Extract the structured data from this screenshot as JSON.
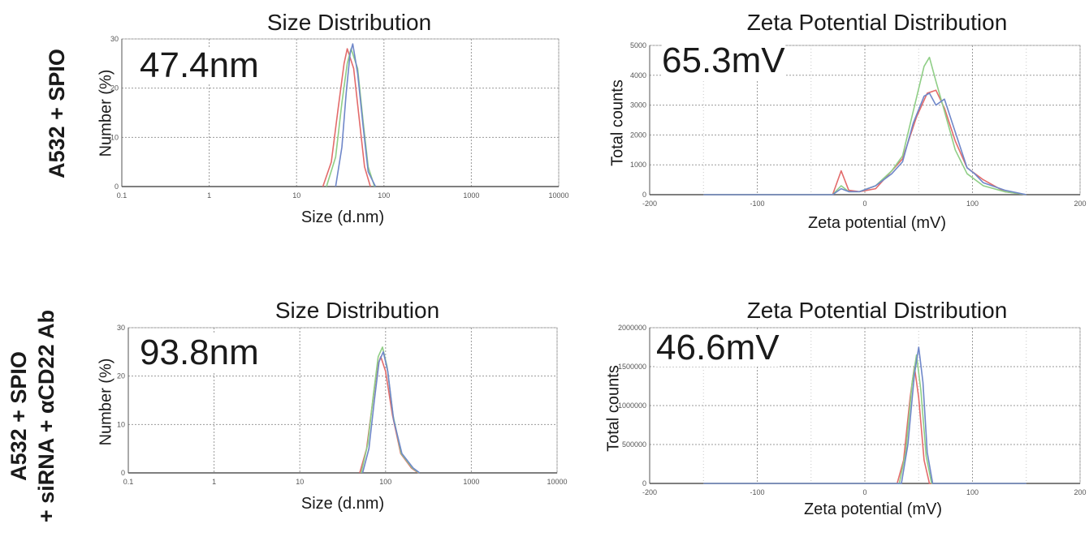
{
  "row_labels": [
    {
      "line1": "A532 + SPIO",
      "line2": ""
    },
    {
      "line1": "A532 + SPIO",
      "line2": "+ siRNA + αCD22 Ab"
    }
  ],
  "panels": [
    {
      "title": "Size Distribution",
      "value_label": "47.4nm",
      "xlabel": "Size (d.nm)",
      "ylabel": "Number (%)"
    },
    {
      "title": "Zeta Potential Distribution",
      "value_label": "65.3mV",
      "xlabel": "Zeta potential (mV)",
      "ylabel": "Total counts"
    },
    {
      "title": "Size Distribution",
      "value_label": "93.8nm",
      "xlabel": "Size (d.nm)",
      "ylabel": "Number (%)"
    },
    {
      "title": "Zeta Potential Distribution",
      "value_label": "46.6mV",
      "xlabel": "Zeta potential (mV)",
      "ylabel": "Total counts"
    }
  ],
  "colors": {
    "red": "#e36b6b",
    "green": "#8fce86",
    "blue": "#6f87c9",
    "grid": "#9a9a9a",
    "axis": "#555555"
  },
  "chart_data": [
    {
      "type": "line",
      "title": "Size Distribution",
      "xlabel": "Size (d.nm)",
      "ylabel": "Number (%)",
      "x_scale": "log",
      "xlim": [
        0.1,
        10000
      ],
      "ylim": [
        0,
        30
      ],
      "x_ticks": [
        "0.1",
        "1",
        "10",
        "100",
        "1000",
        "10000"
      ],
      "y_ticks": [
        "0",
        "10",
        "20",
        "30"
      ],
      "annotation": "47.4nm",
      "series": [
        {
          "color": "red",
          "x": [
            20,
            25,
            30,
            35,
            38,
            45,
            52,
            60,
            70
          ],
          "y": [
            0,
            5,
            16,
            25,
            28,
            24,
            14,
            4,
            0
          ]
        },
        {
          "color": "green",
          "x": [
            22,
            28,
            33,
            38,
            42,
            50,
            58,
            66,
            78
          ],
          "y": [
            0,
            6,
            17,
            25,
            28,
            24,
            13,
            4,
            0
          ]
        },
        {
          "color": "blue",
          "x": [
            28,
            33,
            37,
            41,
            44,
            50,
            58,
            66,
            80
          ],
          "y": [
            0,
            8,
            19,
            27,
            29,
            23,
            12,
            3,
            0
          ]
        }
      ]
    },
    {
      "type": "line",
      "title": "Zeta Potential Distribution",
      "xlabel": "Zeta potential (mV)",
      "ylabel": "Total counts",
      "xlim": [
        -200,
        200
      ],
      "ylim": [
        0,
        5000
      ],
      "x_ticks": [
        "-200",
        "-100",
        "0",
        "100",
        "200"
      ],
      "y_ticks": [
        "0",
        "1000",
        "2000",
        "3000",
        "4000",
        "5000"
      ],
      "annotation": "65.3mV",
      "series": [
        {
          "color": "red",
          "x": [
            -150,
            -30,
            -22,
            -15,
            -5,
            10,
            25,
            35,
            48,
            58,
            66,
            74,
            84,
            95,
            110,
            130,
            150
          ],
          "y": [
            0,
            0,
            800,
            150,
            100,
            200,
            800,
            1200,
            2600,
            3400,
            3500,
            2900,
            1800,
            900,
            500,
            100,
            0
          ]
        },
        {
          "color": "green",
          "x": [
            -150,
            -30,
            -22,
            -15,
            -5,
            10,
            25,
            35,
            45,
            55,
            60,
            66,
            74,
            84,
            95,
            110,
            130,
            150
          ],
          "y": [
            0,
            0,
            300,
            100,
            100,
            300,
            800,
            1300,
            2800,
            4300,
            4600,
            3800,
            2800,
            1500,
            700,
            300,
            100,
            0
          ]
        },
        {
          "color": "blue",
          "x": [
            -150,
            -30,
            -22,
            -15,
            -5,
            10,
            25,
            35,
            45,
            55,
            60,
            66,
            74,
            84,
            95,
            102,
            110,
            130,
            150
          ],
          "y": [
            0,
            0,
            200,
            100,
            100,
            300,
            700,
            1100,
            2400,
            3300,
            3400,
            3000,
            3200,
            2100,
            900,
            700,
            400,
            150,
            0
          ]
        }
      ]
    },
    {
      "type": "line",
      "title": "Size Distribution",
      "xlabel": "Size (d.nm)",
      "ylabel": "Number (%)",
      "x_scale": "log",
      "xlim": [
        0.1,
        10000
      ],
      "ylim": [
        0,
        30
      ],
      "x_ticks": [
        "0.1",
        "1",
        "10",
        "100",
        "1000",
        "10000"
      ],
      "y_ticks": [
        "0",
        "10",
        "20",
        "30"
      ],
      "annotation": "93.8nm",
      "series": [
        {
          "color": "red",
          "x": [
            50,
            60,
            70,
            80,
            88,
            100,
            120,
            150,
            200,
            240
          ],
          "y": [
            0,
            5,
            14,
            22,
            24,
            21,
            12,
            4,
            1,
            0
          ]
        },
        {
          "color": "green",
          "x": [
            52,
            62,
            72,
            82,
            92,
            104,
            122,
            152,
            205,
            245
          ],
          "y": [
            0,
            6,
            16,
            24,
            26,
            22,
            12,
            4,
            1,
            0
          ]
        },
        {
          "color": "blue",
          "x": [
            54,
            64,
            74,
            84,
            94,
            106,
            124,
            155,
            210,
            250
          ],
          "y": [
            0,
            5,
            15,
            23,
            25,
            21,
            11,
            4,
            1,
            0
          ]
        }
      ]
    },
    {
      "type": "line",
      "title": "Zeta Potential Distribution",
      "xlabel": "Zeta potential (mV)",
      "ylabel": "Total counts",
      "xlim": [
        -200,
        200
      ],
      "ylim": [
        0,
        2000000
      ],
      "x_ticks": [
        "-200",
        "-100",
        "0",
        "100",
        "200"
      ],
      "y_ticks": [
        "0",
        "500000",
        "1000000",
        "1500000",
        "2000000"
      ],
      "annotation": "46.6mV",
      "series": [
        {
          "color": "red",
          "x": [
            -150,
            30,
            36,
            42,
            46,
            50,
            55,
            60,
            150
          ],
          "y": [
            0,
            0,
            300000,
            1100000,
            1500000,
            1100000,
            300000,
            0,
            0
          ]
        },
        {
          "color": "green",
          "x": [
            -150,
            32,
            38,
            44,
            48,
            52,
            57,
            62,
            150
          ],
          "y": [
            0,
            0,
            400000,
            1300000,
            1650000,
            1200000,
            350000,
            0,
            0
          ]
        },
        {
          "color": "blue",
          "x": [
            -150,
            34,
            40,
            46,
            50,
            54,
            58,
            63,
            150
          ],
          "y": [
            0,
            0,
            500000,
            1400000,
            1750000,
            1300000,
            400000,
            0,
            0
          ]
        }
      ]
    }
  ]
}
